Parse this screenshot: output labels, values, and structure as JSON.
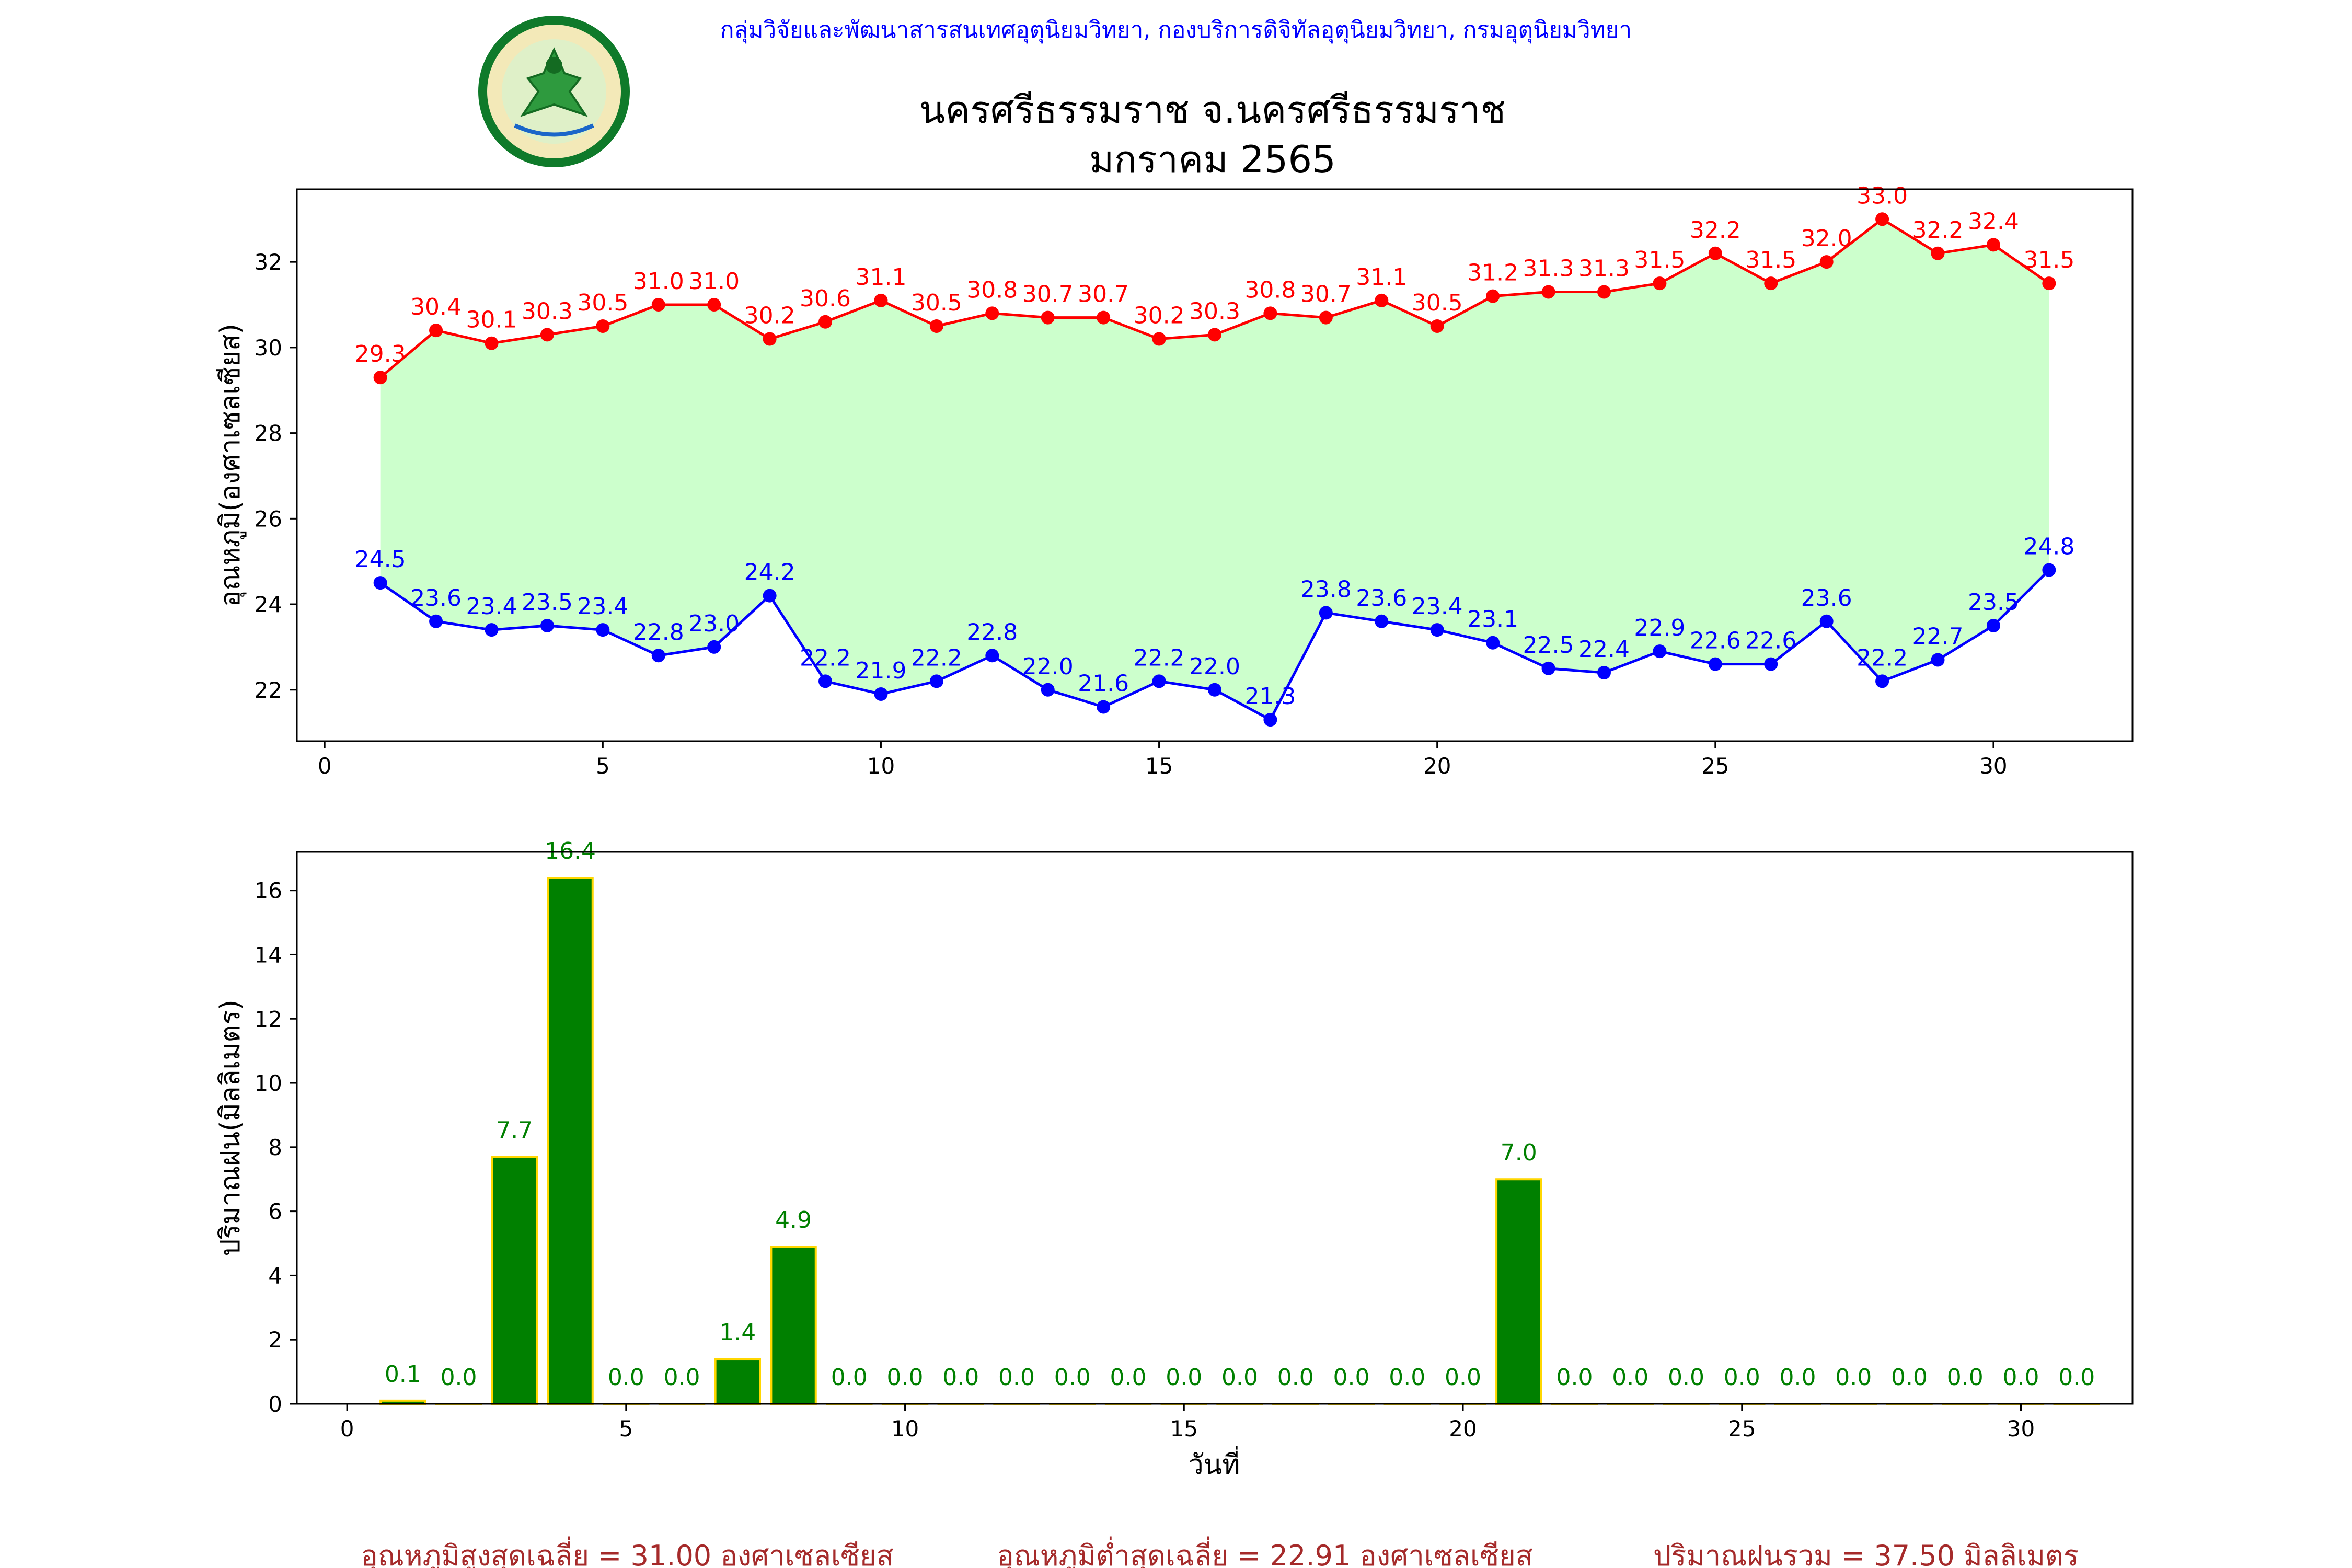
{
  "header": {
    "subtitle": "กลุ่มวิจัยและพัฒนาสารสนเทศอุตุนิยมวิทยา, กองบริการดิจิทัลอุตุนิยมวิทยา, กรมอุตุนิยมวิทยา",
    "title_line1": "นครศรีธรรมราช จ.นครศรีธรรมราช",
    "title_line2": "มกราคม 2565",
    "logo_icon": "meteorological-department-seal-icon"
  },
  "footer": {
    "avg_max": "อุณหภูมิสูงสุดเฉลี่ย = 31.00 องศาเซลเซียส",
    "avg_min": "อุณหภูมิต่ำสุดเฉลี่ย = 22.91 องศาเซลเซียส",
    "total_rain": "ปริมาณฝนรวม = 37.50 มิลลิเมตร"
  },
  "colors": {
    "max_series": "#ff0000",
    "min_series": "#0000ff",
    "band_fill": "#ccffcc",
    "rain_bar": "#008000",
    "rain_bar_edge": "#ffd700",
    "rain_label": "#008000",
    "subtitle": "#0000ff",
    "footer": "#a52a2a"
  },
  "chart_data": [
    {
      "type": "line",
      "ylabel": "อุณหภูมิ(องศาเซลเซียส)",
      "xlabel": "",
      "x": [
        1,
        2,
        3,
        4,
        5,
        6,
        7,
        8,
        9,
        10,
        11,
        12,
        13,
        14,
        15,
        16,
        17,
        18,
        19,
        20,
        21,
        22,
        23,
        24,
        25,
        26,
        27,
        28,
        29,
        30,
        31
      ],
      "xlim": [
        -0.5,
        32.5
      ],
      "ylim": [
        20.8,
        33.7
      ],
      "xticks": [
        0,
        5,
        10,
        15,
        20,
        25,
        30
      ],
      "yticks": [
        22,
        24,
        26,
        28,
        30,
        32
      ],
      "grid": false,
      "fill_between": true,
      "series": [
        {
          "key": "max",
          "values": [
            29.3,
            30.4,
            30.1,
            30.3,
            30.5,
            31.0,
            31.0,
            30.2,
            30.6,
            31.1,
            30.5,
            30.8,
            30.7,
            30.7,
            30.2,
            30.3,
            30.8,
            30.7,
            31.1,
            30.5,
            31.2,
            31.3,
            31.3,
            31.5,
            32.2,
            31.5,
            32.0,
            33.0,
            32.2,
            32.4,
            31.5
          ],
          "labels": [
            "29.3",
            "30.4",
            "30.1",
            "30.3",
            "30.5",
            "31.0",
            "31.0",
            "30.2",
            "30.6",
            "31.1",
            "30.5",
            "30.8",
            "30.7",
            "30.7",
            "30.2",
            "30.3",
            "30.8",
            "30.7",
            "31.1",
            "30.5",
            "31.2",
            "31.3",
            "31.3",
            "31.5",
            "32.2",
            "31.5",
            "32.0",
            "33.0",
            "32.2",
            "32.4",
            "31.5"
          ]
        },
        {
          "key": "min",
          "values": [
            24.5,
            23.6,
            23.4,
            23.5,
            23.4,
            22.8,
            23.0,
            24.2,
            22.2,
            21.9,
            22.2,
            22.8,
            22.0,
            21.6,
            22.2,
            22.0,
            21.3,
            23.8,
            23.6,
            23.4,
            23.1,
            22.5,
            22.4,
            22.9,
            22.6,
            22.6,
            23.6,
            22.2,
            22.7,
            23.5,
            24.8
          ],
          "labels": [
            "24.5",
            "23.6",
            "23.4",
            "23.5",
            "23.4",
            "22.8",
            "23.0",
            "24.2",
            "22.2",
            "21.9",
            "22.2",
            "22.8",
            "22.0",
            "21.6",
            "22.2",
            "22.0",
            "21.3",
            "23.8",
            "23.6",
            "23.4",
            "23.1",
            "22.5",
            "22.4",
            "22.9",
            "22.6",
            "22.6",
            "23.6",
            "22.2",
            "22.7",
            "23.5",
            "24.8"
          ]
        }
      ]
    },
    {
      "type": "bar",
      "ylabel": "ปริมาณฝน(มิลลิเมตร)",
      "xlabel": "วันที่",
      "x": [
        1,
        2,
        3,
        4,
        5,
        6,
        7,
        8,
        9,
        10,
        11,
        12,
        13,
        14,
        15,
        16,
        17,
        18,
        19,
        20,
        21,
        22,
        23,
        24,
        25,
        26,
        27,
        28,
        29,
        30,
        31
      ],
      "xlim": [
        -0.9,
        32.0
      ],
      "ylim": [
        0,
        17.2
      ],
      "xticks": [
        0,
        5,
        10,
        15,
        20,
        25,
        30
      ],
      "yticks": [
        0,
        2,
        4,
        6,
        8,
        10,
        12,
        14,
        16
      ],
      "grid": false,
      "series": [
        {
          "key": "rain",
          "values": [
            0.1,
            0.0,
            7.7,
            16.4,
            0.0,
            0.0,
            1.4,
            4.9,
            0.0,
            0.0,
            0.0,
            0.0,
            0.0,
            0.0,
            0.0,
            0.0,
            0.0,
            0.0,
            0.0,
            0.0,
            7.0,
            0.0,
            0.0,
            0.0,
            0.0,
            0.0,
            0.0,
            0.0,
            0.0,
            0.0,
            0.0
          ],
          "labels": [
            "0.1",
            "0.0",
            "7.7",
            "16.4",
            "0.0",
            "0.0",
            "1.4",
            "4.9",
            "0.0",
            "0.0",
            "0.0",
            "0.0",
            "0.0",
            "0.0",
            "0.0",
            "0.0",
            "0.0",
            "0.0",
            "0.0",
            "0.0",
            "7.0",
            "0.0",
            "0.0",
            "0.0",
            "0.0",
            "0.0",
            "0.0",
            "0.0",
            "0.0",
            "0.0",
            "0.0"
          ]
        }
      ]
    }
  ]
}
